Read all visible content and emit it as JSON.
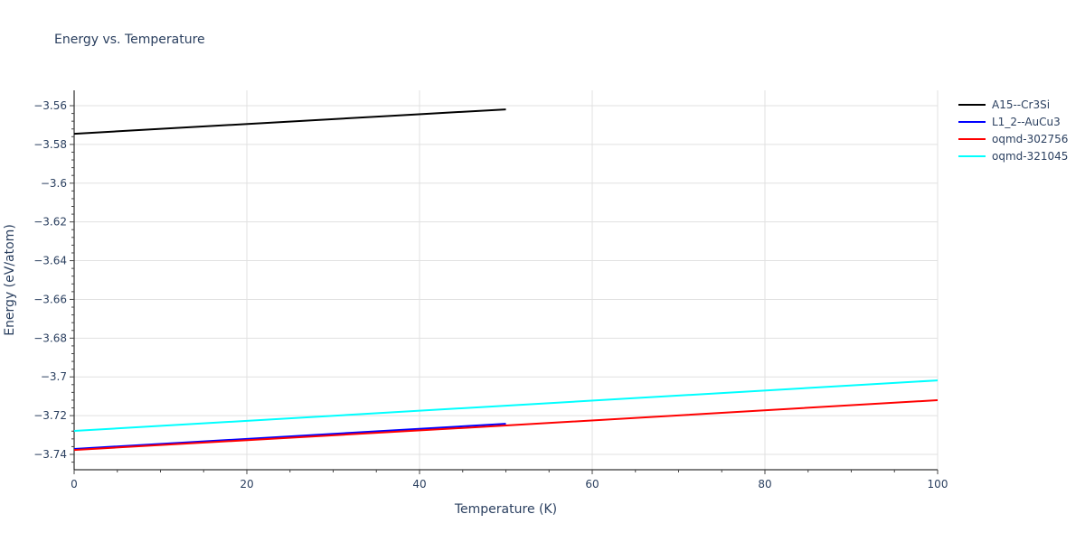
{
  "chart_data": {
    "type": "line",
    "title": "Energy vs. Temperature",
    "xlabel": "Temperature (K)",
    "ylabel": "Energy (eV/atom)",
    "xlim": [
      0,
      100
    ],
    "ylim": [
      -3.748,
      -3.552
    ],
    "x_ticks": [
      0,
      20,
      40,
      60,
      80,
      100
    ],
    "x_tick_labels": [
      "0",
      "20",
      "40",
      "60",
      "80",
      "100"
    ],
    "y_ticks": [
      -3.56,
      -3.58,
      -3.6,
      -3.62,
      -3.64,
      -3.66,
      -3.68,
      -3.7,
      -3.72,
      -3.74
    ],
    "y_tick_labels": [
      "−3.56",
      "−3.58",
      "−3.6",
      "−3.62",
      "−3.64",
      "−3.66",
      "−3.68",
      "−3.7",
      "−3.72",
      "−3.74"
    ],
    "grid": true,
    "legend_position": "right",
    "series": [
      {
        "name": "A15--Cr3Si",
        "color": "#000000",
        "x": [
          0,
          50
        ],
        "values": [
          -3.5745,
          -3.5619
        ]
      },
      {
        "name": "L1_2--AuCu3",
        "color": "#0000ff",
        "x": [
          0,
          50
        ],
        "values": [
          -3.7372,
          -3.7242
        ]
      },
      {
        "name": "oqmd-302756",
        "color": "#ff0000",
        "x": [
          0,
          50,
          100
        ],
        "values": [
          -3.7377,
          -3.7251,
          -3.712
        ]
      },
      {
        "name": "oqmd-321045",
        "color": "#00ffff",
        "x": [
          0,
          100
        ],
        "values": [
          -3.7279,
          -3.7018
        ]
      }
    ]
  }
}
